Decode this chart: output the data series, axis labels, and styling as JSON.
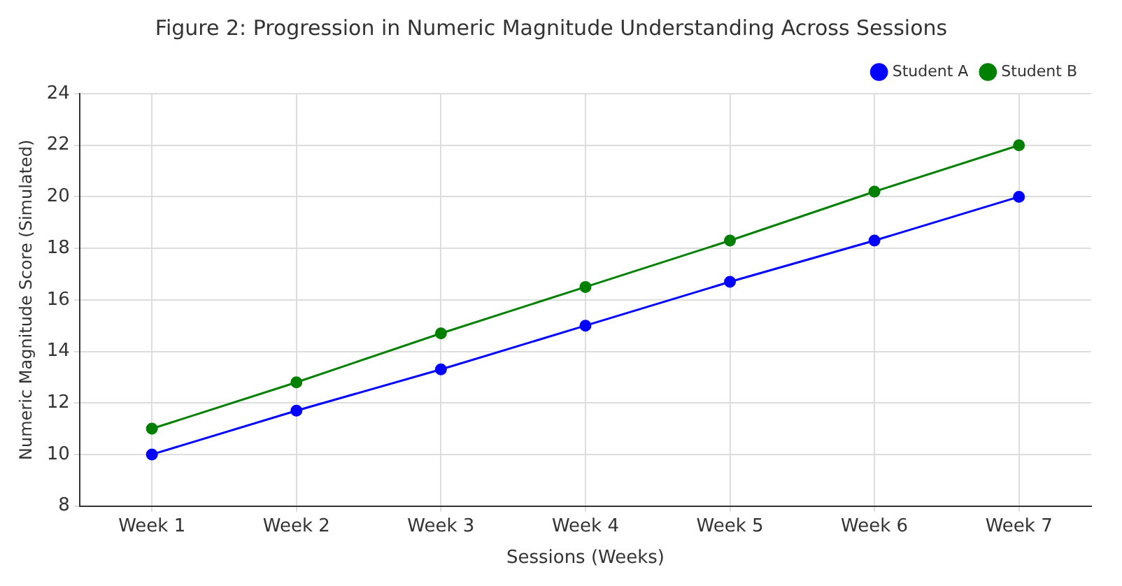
{
  "chart_data": {
    "type": "line",
    "title": "Figure 2: Progression in Numeric Magnitude Understanding Across Sessions",
    "xlabel": "Sessions (Weeks)",
    "ylabel": "Numeric Magnitude Score (Simulated)",
    "categories": [
      "Week 1",
      "Week 2",
      "Week 3",
      "Week 4",
      "Week 5",
      "Week 6",
      "Week 7"
    ],
    "series": [
      {
        "name": "Student A",
        "color": "#0000ff",
        "values": [
          10,
          11.7,
          13.3,
          15,
          16.7,
          18.3,
          20
        ]
      },
      {
        "name": "Student B",
        "color": "#008000",
        "values": [
          11,
          12.8,
          14.7,
          16.5,
          18.3,
          20.2,
          22
        ]
      }
    ],
    "ylim": [
      8,
      24
    ],
    "yticks": [
      8,
      10,
      12,
      14,
      16,
      18,
      20,
      22,
      24
    ],
    "grid": true,
    "legend": "top right",
    "marker": "circle",
    "line_style": "solid"
  }
}
